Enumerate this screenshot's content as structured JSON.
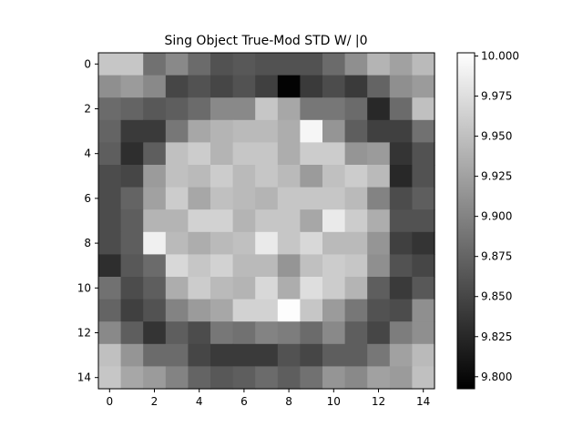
{
  "chart_data": {
    "type": "heatmap",
    "title": "Sing Object True-Mod STD W/ |0",
    "xlabel": "",
    "ylabel": "",
    "x": [
      0,
      1,
      2,
      3,
      4,
      5,
      6,
      7,
      8,
      9,
      10,
      11,
      12,
      13,
      14
    ],
    "y": [
      0,
      1,
      2,
      3,
      4,
      5,
      6,
      7,
      8,
      9,
      10,
      11,
      12,
      13,
      14
    ],
    "xticks": [
      0,
      2,
      4,
      6,
      8,
      10,
      12,
      14
    ],
    "yticks": [
      0,
      2,
      4,
      6,
      8,
      10,
      12,
      14
    ],
    "colormap": "gray",
    "colorbar": {
      "vmin": 9.7925,
      "vmax": 10.002,
      "ticks": [
        9.8,
        9.825,
        9.85,
        9.875,
        9.9,
        9.925,
        9.95,
        9.975,
        10.0
      ],
      "tick_labels": [
        "9.800",
        "9.825",
        "9.850",
        "9.875",
        "9.900",
        "9.925",
        "9.950",
        "9.975",
        "10.000"
      ],
      "placement": "right"
    },
    "grid": false,
    "z": [
      [
        9.955,
        9.955,
        9.885,
        9.905,
        9.88,
        9.86,
        9.865,
        9.86,
        9.86,
        9.86,
        9.88,
        9.91,
        9.94,
        9.925,
        9.945
      ],
      [
        9.91,
        9.92,
        9.905,
        9.85,
        9.86,
        9.85,
        9.86,
        9.845,
        9.795,
        9.84,
        9.855,
        9.84,
        9.875,
        9.91,
        9.92
      ],
      [
        9.88,
        9.875,
        9.865,
        9.87,
        9.88,
        9.905,
        9.905,
        9.955,
        9.93,
        9.89,
        9.89,
        9.88,
        9.825,
        9.88,
        9.95
      ],
      [
        9.875,
        9.84,
        9.84,
        9.89,
        9.93,
        9.94,
        9.945,
        9.945,
        9.935,
        9.995,
        9.915,
        9.87,
        9.845,
        9.845,
        9.885
      ],
      [
        9.87,
        9.83,
        9.87,
        9.95,
        9.96,
        9.94,
        9.955,
        9.955,
        9.935,
        9.96,
        9.96,
        9.915,
        9.92,
        9.835,
        9.86
      ],
      [
        9.855,
        9.85,
        9.92,
        9.95,
        9.945,
        9.96,
        9.945,
        9.955,
        9.945,
        9.92,
        9.95,
        9.96,
        9.945,
        9.825,
        9.86
      ],
      [
        9.855,
        9.875,
        9.925,
        9.96,
        9.93,
        9.95,
        9.945,
        9.94,
        9.955,
        9.955,
        9.955,
        9.945,
        9.9,
        9.855,
        9.87
      ],
      [
        9.855,
        9.87,
        9.94,
        9.94,
        9.965,
        9.965,
        9.94,
        9.955,
        9.955,
        9.93,
        9.985,
        9.96,
        9.935,
        9.86,
        9.86
      ],
      [
        9.855,
        9.87,
        9.99,
        9.945,
        9.935,
        9.945,
        9.95,
        9.985,
        9.955,
        9.97,
        9.945,
        9.945,
        9.915,
        9.845,
        9.835
      ],
      [
        9.83,
        9.865,
        9.88,
        9.97,
        9.955,
        9.965,
        9.945,
        9.945,
        9.915,
        9.95,
        9.96,
        9.955,
        9.91,
        9.86,
        9.85
      ],
      [
        9.885,
        9.855,
        9.87,
        9.935,
        9.96,
        9.945,
        9.94,
        9.97,
        9.935,
        9.975,
        9.96,
        9.94,
        9.87,
        9.84,
        9.865
      ],
      [
        9.875,
        9.845,
        9.86,
        9.9,
        9.92,
        9.93,
        9.965,
        9.965,
        10.0,
        9.955,
        9.92,
        9.89,
        9.86,
        9.855,
        9.91
      ],
      [
        9.905,
        9.87,
        9.835,
        9.87,
        9.855,
        9.89,
        9.885,
        9.9,
        9.895,
        9.88,
        9.905,
        9.87,
        9.85,
        9.895,
        9.91
      ],
      [
        9.95,
        9.915,
        9.88,
        9.88,
        9.85,
        9.84,
        9.84,
        9.84,
        9.86,
        9.85,
        9.87,
        9.87,
        9.89,
        9.925,
        9.945
      ],
      [
        9.955,
        9.93,
        9.92,
        9.9,
        9.875,
        9.865,
        9.87,
        9.88,
        9.87,
        9.885,
        9.915,
        9.905,
        9.925,
        9.92,
        9.95
      ]
    ]
  }
}
